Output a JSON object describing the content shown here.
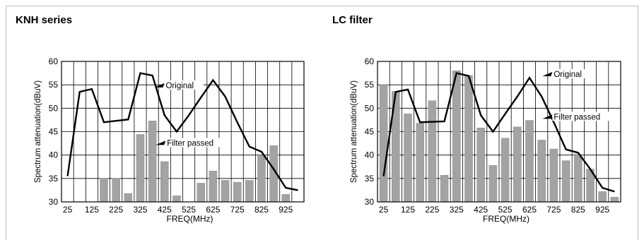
{
  "chart_data": [
    {
      "type": "bar+line",
      "title": "KNH series",
      "xlabel": "FREQ(MHz)",
      "ylabel": "Spectrum attenuation(dBuV)",
      "ylim": [
        30,
        60
      ],
      "yticks": [
        "60",
        "55",
        "50",
        "45",
        "40",
        "35",
        "30"
      ],
      "xticks": [
        "25",
        "125",
        "225",
        "325",
        "425",
        "525",
        "625",
        "725",
        "825",
        "925"
      ],
      "bars": {
        "name": "Filter passed",
        "x": [
          175,
          225,
          275,
          325,
          375,
          425,
          475,
          575,
          625,
          675,
          725,
          775,
          825,
          875,
          925
        ],
        "values": [
          35,
          35,
          31.8,
          44.4,
          47.3,
          38.6,
          31.3,
          34,
          36.6,
          34.6,
          34.2,
          34.6,
          39.8,
          42,
          31.6
        ]
      },
      "line": {
        "name": "Original",
        "x": [
          25,
          75,
          125,
          175,
          225,
          275,
          325,
          375,
          425,
          475,
          525,
          575,
          625,
          675,
          725,
          775,
          825,
          875,
          925,
          975
        ],
        "values": [
          35.5,
          53.5,
          54.1,
          47,
          47.3,
          47.6,
          57.5,
          57,
          48.5,
          45,
          48.5,
          52.3,
          56,
          52.5,
          47,
          41.8,
          40.7,
          37,
          33,
          32.5
        ]
      },
      "annotations": [
        {
          "text": "Original",
          "x": 395,
          "y": 54.9
        },
        {
          "text": "Filter passed",
          "x": 400,
          "y": 42.6
        }
      ]
    },
    {
      "type": "bar+line",
      "title": "LC filter",
      "xlabel": "FREQ(MHz)",
      "ylabel": "Spectrum attenuation(dBuV)",
      "ylim": [
        30,
        60
      ],
      "yticks": [
        "60",
        "55",
        "50",
        "45",
        "40",
        "35",
        "30"
      ],
      "xticks": [
        "25",
        "125",
        "225",
        "325",
        "425",
        "525",
        "625",
        "725",
        "825",
        "925"
      ],
      "bars": {
        "name": "Filter passed",
        "x": [
          25,
          75,
          125,
          175,
          225,
          275,
          325,
          375,
          425,
          475,
          525,
          575,
          625,
          675,
          725,
          775,
          825,
          875,
          925,
          975
        ],
        "values": [
          55,
          53.6,
          48.8,
          46.8,
          51.6,
          35.7,
          58,
          57,
          45.8,
          37.8,
          43.6,
          46,
          47.4,
          43.2,
          41.3,
          38.8,
          40.2,
          37,
          32.2,
          31
        ]
      },
      "line": {
        "name": "Original",
        "x": [
          25,
          75,
          125,
          175,
          225,
          275,
          325,
          375,
          425,
          475,
          525,
          575,
          625,
          675,
          725,
          775,
          825,
          875,
          925,
          975
        ],
        "values": [
          35.5,
          53.5,
          54,
          47,
          47.1,
          47.2,
          57.5,
          56.9,
          48.5,
          45,
          48.8,
          52.5,
          56.5,
          52.5,
          47,
          41.2,
          40.5,
          37,
          33,
          32.2
        ]
      },
      "annotations": [
        {
          "text": "Original",
          "x": 690,
          "y": 57.3
        },
        {
          "text": "Filter passed",
          "x": 690,
          "y": 48.2
        }
      ]
    }
  ]
}
